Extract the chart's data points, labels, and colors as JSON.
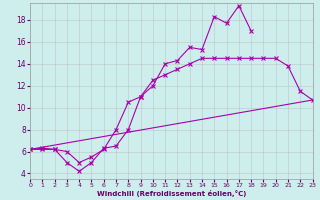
{
  "xlabel": "Windchill (Refroidissement éolien,°C)",
  "bg_color": "#cdeeed",
  "grid_color": "#bbbbbb",
  "line_color": "#aa00aa",
  "line1_x": [
    0,
    1,
    2,
    3,
    4,
    5,
    6,
    7,
    8,
    9,
    10,
    11,
    12,
    13,
    14,
    15,
    16,
    17,
    18
  ],
  "line1_y": [
    6.2,
    6.3,
    6.2,
    5.0,
    4.2,
    5.0,
    6.3,
    6.5,
    8.0,
    11.0,
    12.0,
    14.0,
    14.3,
    15.5,
    15.3,
    18.3,
    17.7,
    19.3,
    17.0
  ],
  "line2_x": [
    0,
    1,
    2,
    3,
    4,
    5,
    6,
    7,
    8,
    9,
    10,
    11,
    12,
    13,
    14,
    15,
    16,
    17,
    18,
    19,
    20,
    21,
    22,
    23
  ],
  "line2_y": [
    6.2,
    6.2,
    6.2,
    6.0,
    5.0,
    5.5,
    6.2,
    8.0,
    10.5,
    11.0,
    12.5,
    13.0,
    13.5,
    14.0,
    14.5,
    14.5,
    14.5,
    14.5,
    14.5,
    14.5,
    14.5,
    13.8,
    11.5,
    10.7
  ],
  "line3_x": [
    0,
    23
  ],
  "line3_y": [
    6.2,
    10.7
  ],
  "xlim": [
    0,
    23
  ],
  "ylim": [
    3.5,
    19.5
  ],
  "yticks": [
    4,
    6,
    8,
    10,
    12,
    14,
    16,
    18
  ],
  "xticks": [
    0,
    1,
    2,
    3,
    4,
    5,
    6,
    7,
    8,
    9,
    10,
    11,
    12,
    13,
    14,
    15,
    16,
    17,
    18,
    19,
    20,
    21,
    22,
    23
  ],
  "marker": "x",
  "linewidth": 0.8,
  "markersize": 3
}
